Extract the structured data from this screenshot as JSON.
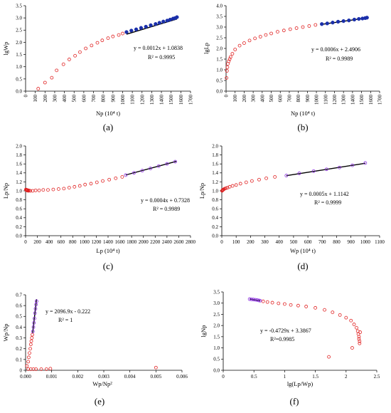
{
  "chart_data": [
    {
      "id": "a",
      "type": "scatter",
      "panel_label": "(a)",
      "xlabel": "Np  (10⁴ t)",
      "ylabel": "lgWp",
      "xlim": [
        0,
        1700
      ],
      "ylim": [
        0,
        3.5
      ],
      "xticks": [
        0,
        100,
        200,
        300,
        400,
        500,
        600,
        700,
        800,
        900,
        1000,
        1100,
        1200,
        1300,
        1400,
        1500,
        1600,
        1700
      ],
      "yticks": [
        0.0,
        0.5,
        1.0,
        1.5,
        2.0,
        2.5,
        3.0,
        3.5
      ],
      "ytick_format": 1,
      "xtick_rotate": true,
      "equation": "y = 0.0012x + 1.0838",
      "r2": "R² = 0.9995",
      "fit_line": {
        "x": [
          1040,
          1560
        ],
        "y": [
          2.332,
          2.956
        ]
      },
      "series": [
        {
          "marker": "open-circle",
          "color": "#e02020",
          "x": [
            130,
            200,
            270,
            320,
            390,
            450,
            510,
            560,
            620,
            680,
            740,
            790,
            850,
            900,
            960,
            1000
          ],
          "y": [
            0.1,
            0.35,
            0.55,
            0.85,
            1.1,
            1.3,
            1.45,
            1.6,
            1.75,
            1.87,
            1.98,
            2.08,
            2.17,
            2.24,
            2.3,
            2.36
          ]
        },
        {
          "marker": "filled-circle",
          "color": "#1a2faa",
          "x": [
            1040,
            1090,
            1140,
            1190,
            1240,
            1290,
            1340,
            1380,
            1420,
            1460,
            1490,
            1520,
            1540,
            1560
          ],
          "y": [
            2.42,
            2.48,
            2.53,
            2.59,
            2.64,
            2.7,
            2.75,
            2.8,
            2.85,
            2.89,
            2.93,
            2.97,
            2.99,
            3.03
          ]
        }
      ]
    },
    {
      "id": "b",
      "type": "scatter",
      "panel_label": "(b)",
      "xlabel": "Np  (10⁴ t)",
      "ylabel": "lgLp",
      "xlim": [
        0,
        1700
      ],
      "ylim": [
        0,
        4.0
      ],
      "xticks": [
        0,
        100,
        200,
        300,
        400,
        500,
        600,
        700,
        800,
        900,
        1000,
        1100,
        1200,
        1300,
        1400,
        1500,
        1600,
        1700
      ],
      "yticks": [
        0.0,
        0.5,
        1.0,
        1.5,
        2.0,
        2.5,
        3.0,
        3.5,
        4.0
      ],
      "ytick_format": 1,
      "xtick_rotate": true,
      "equation": "y = 0.0006x + 2.4906",
      "r2": "R² = 0.9989",
      "fit_line": {
        "x": [
          1060,
          1560
        ],
        "y": [
          3.127,
          3.427
        ]
      },
      "series": [
        {
          "marker": "open-circle",
          "color": "#e02020",
          "x": [
            5,
            10,
            15,
            20,
            30,
            40,
            50,
            70,
            100,
            150,
            200,
            260,
            320,
            380,
            440,
            500,
            570,
            640,
            710,
            780,
            850,
            920,
            990
          ],
          "y": [
            0.62,
            0.95,
            1.12,
            1.28,
            1.4,
            1.5,
            1.6,
            1.75,
            1.95,
            2.13,
            2.25,
            2.37,
            2.47,
            2.55,
            2.63,
            2.7,
            2.78,
            2.84,
            2.9,
            2.95,
            3.0,
            3.05,
            3.1
          ]
        },
        {
          "marker": "filled-circle",
          "color": "#1a2faa",
          "x": [
            1060,
            1120,
            1180,
            1240,
            1300,
            1360,
            1420,
            1470,
            1510,
            1540,
            1560
          ],
          "y": [
            3.14,
            3.17,
            3.21,
            3.25,
            3.28,
            3.31,
            3.35,
            3.38,
            3.4,
            3.42,
            3.44
          ]
        }
      ]
    },
    {
      "id": "c",
      "type": "scatter",
      "panel_label": "(c)",
      "xlabel": "Lp  (10⁴ t)",
      "ylabel": "Lp/Np",
      "xlim": [
        0,
        2800
      ],
      "ylim": [
        0,
        2.0
      ],
      "xticks": [
        0,
        200,
        400,
        600,
        800,
        1000,
        1200,
        1400,
        1600,
        1800,
        2000,
        2200,
        2400,
        2600,
        2800
      ],
      "yticks": [
        0.0,
        0.2,
        0.4,
        0.6,
        0.8,
        1.0,
        1.2,
        1.4,
        1.6,
        1.8,
        2.0
      ],
      "ytick_format": 1,
      "xtick_rotate": false,
      "equation": "y = 0.0004x + 0.7328",
      "r2": "R² = 0.9989",
      "fit_line": {
        "x": [
          1700,
          2560
        ],
        "y": [
          1.353,
          1.657
        ]
      },
      "series": [
        {
          "marker": "open-circle",
          "color": "#e02020",
          "x": [
            5,
            10,
            15,
            20,
            25,
            30,
            35,
            45,
            60,
            80,
            120,
            170,
            230,
            300,
            380,
            470,
            560,
            650,
            740,
            830,
            920,
            1010,
            1110,
            1210,
            1310,
            1420,
            1530,
            1640
          ],
          "y": [
            1.03,
            1.02,
            1.02,
            1.01,
            1.01,
            1.02,
            1.01,
            1.0,
            1.01,
            1.0,
            1.0,
            1.01,
            1.01,
            1.02,
            1.02,
            1.03,
            1.04,
            1.05,
            1.07,
            1.09,
            1.11,
            1.14,
            1.16,
            1.19,
            1.22,
            1.25,
            1.28,
            1.31
          ]
        },
        {
          "marker": "open-circle",
          "color": "#8a2be2",
          "x": [
            1700,
            1840,
            1980,
            2120,
            2260,
            2400,
            2540
          ],
          "y": [
            1.35,
            1.4,
            1.45,
            1.5,
            1.55,
            1.6,
            1.65
          ]
        }
      ]
    },
    {
      "id": "d",
      "type": "scatter",
      "panel_label": "(d)",
      "xlabel": "Wp  (10⁴ t)",
      "ylabel": "Lp/Np",
      "xlim": [
        0,
        1100
      ],
      "ylim": [
        0,
        2.0
      ],
      "xticks": [
        0,
        100,
        200,
        300,
        400,
        500,
        600,
        700,
        800,
        900,
        1000,
        1100
      ],
      "yticks": [
        0.0,
        0.2,
        0.4,
        0.6,
        0.8,
        1.0,
        1.2,
        1.4,
        1.6,
        1.8,
        2.0
      ],
      "ytick_format": 1,
      "xtick_rotate": false,
      "equation": "y = 0.0005x + 1.1142",
      "r2": "R² = 0.9999",
      "fit_line": {
        "x": [
          450,
          1000
        ],
        "y": [
          1.339,
          1.614
        ]
      },
      "series": [
        {
          "marker": "open-circle",
          "color": "#e02020",
          "x": [
            2,
            4,
            6,
            9,
            12,
            16,
            22,
            30,
            40,
            55,
            75,
            100,
            130,
            170,
            210,
            260,
            310,
            370
          ],
          "y": [
            1.0,
            1.01,
            1.02,
            1.02,
            1.03,
            1.04,
            1.05,
            1.06,
            1.07,
            1.09,
            1.11,
            1.13,
            1.16,
            1.19,
            1.22,
            1.25,
            1.28,
            1.31
          ]
        },
        {
          "marker": "open-circle",
          "color": "#8a2be2",
          "x": [
            450,
            540,
            640,
            730,
            820,
            910,
            1000
          ],
          "y": [
            1.34,
            1.39,
            1.44,
            1.48,
            1.52,
            1.57,
            1.62
          ]
        }
      ]
    },
    {
      "id": "e",
      "type": "scatter",
      "panel_label": "(e)",
      "xlabel": "Wp/Np²",
      "ylabel": "Wp/Np",
      "xlim": [
        0,
        0.006
      ],
      "ylim": [
        0,
        0.7
      ],
      "xticks": [
        0,
        0.001,
        0.002,
        0.003,
        0.004,
        0.005,
        0.006
      ],
      "yticks": [
        0,
        0.1,
        0.2,
        0.3,
        0.4,
        0.5,
        0.6,
        0.7
      ],
      "ytick_format": "auto",
      "xtick_rotate": false,
      "xtick_decimals": 3,
      "equation": "y = 2096.9x - 0.222",
      "r2": "R² = 1",
      "fit_line": {
        "x": [
          0.00027,
          0.00042
        ],
        "y": [
          0.344,
          0.659
        ]
      },
      "series": [
        {
          "marker": "open-circle",
          "color": "#e02020",
          "x": [
            5e-05,
            0.0001,
            0.00012,
            0.00015,
            0.00018,
            0.0002,
            0.00022,
            0.00024,
            0.00026,
            0.0001,
            0.0002,
            0.0003,
            0.0004,
            0.0006,
            0.0008,
            0.00095,
            0.005
          ],
          "y": [
            0.04,
            0.08,
            0.12,
            0.16,
            0.2,
            0.24,
            0.27,
            0.3,
            0.33,
            0.01,
            0.01,
            0.01,
            0.01,
            0.01,
            0.01,
            0.015,
            0.025
          ]
        },
        {
          "marker": "open-circle",
          "color": "#8a2be2",
          "x": [
            0.00028,
            0.0003,
            0.00032,
            0.00034,
            0.00036,
            0.00038,
            0.0004,
            0.00042
          ],
          "y": [
            0.36,
            0.4,
            0.44,
            0.48,
            0.53,
            0.57,
            0.61,
            0.64
          ]
        }
      ]
    },
    {
      "id": "f",
      "type": "scatter",
      "panel_label": "(f)",
      "xlabel": "lg(Lp/Wp)",
      "ylabel": "lgNp",
      "xlim": [
        0,
        2.5
      ],
      "ylim": [
        0,
        3.5
      ],
      "xticks": [
        0.0,
        0.5,
        1.0,
        1.5,
        2.0,
        2.5
      ],
      "yticks": [
        0.0,
        0.5,
        1.0,
        1.5,
        2.0,
        2.5,
        3.0,
        3.5
      ],
      "ytick_format": 1,
      "xtick_rotate": false,
      "equation": "y = -0.4729x + 3.3867",
      "r2": "R²=0.9985",
      "fit_line": {
        "x": [
          0.43,
          0.6
        ],
        "y": [
          3.183,
          3.103
        ]
      },
      "series": [
        {
          "marker": "open-circle",
          "color": "#e02020",
          "x": [
            0.65,
            0.72,
            0.8,
            0.9,
            1.0,
            1.1,
            1.22,
            1.35,
            1.5,
            1.65,
            1.78,
            1.9,
            2.0,
            2.08,
            2.13,
            2.17,
            2.19,
            2.2,
            2.21,
            2.21,
            2.22,
            2.22,
            2.23,
            2.1,
            1.72
          ],
          "y": [
            3.08,
            3.05,
            3.02,
            2.99,
            2.96,
            2.92,
            2.89,
            2.85,
            2.79,
            2.7,
            2.59,
            2.47,
            2.35,
            2.22,
            2.05,
            1.9,
            1.75,
            1.62,
            1.5,
            1.4,
            1.3,
            1.2,
            1.7,
            1.0,
            0.6
          ]
        },
        {
          "marker": "open-circle",
          "color": "#8a2be2",
          "x": [
            0.43,
            0.46,
            0.49,
            0.52,
            0.55,
            0.58,
            0.6
          ],
          "y": [
            3.18,
            3.17,
            3.16,
            3.15,
            3.14,
            3.12,
            3.11
          ]
        }
      ]
    }
  ]
}
